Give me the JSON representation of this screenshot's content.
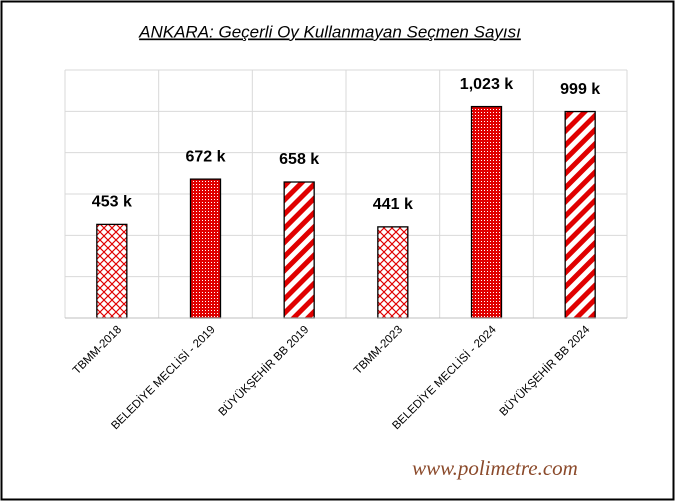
{
  "chart_data": {
    "type": "bar",
    "title": "ANKARA: Geçerli Oy Kullanmayan Seçmen Sayısı",
    "categories": [
      "TBMM-2018",
      "BELEDİYE MECLİSİ - 2019",
      "BÜYÜKŞEHİR BB 2019",
      "TBMM-2023",
      "BELEDİYE MECLİSİ - 2024",
      "BÜYÜKŞEHİR BB 2024"
    ],
    "values": [
      453,
      672,
      658,
      441,
      1023,
      999
    ],
    "value_labels": [
      "453 k",
      "672 k",
      "658 k",
      "441 k",
      "1,023 k",
      "999 k"
    ],
    "color": "#e00000",
    "ylim": [
      0,
      1200
    ],
    "yticks": [
      0,
      200,
      400,
      600,
      800,
      1000,
      1200
    ],
    "grid": true,
    "watermark": "www.polimetre.com"
  }
}
